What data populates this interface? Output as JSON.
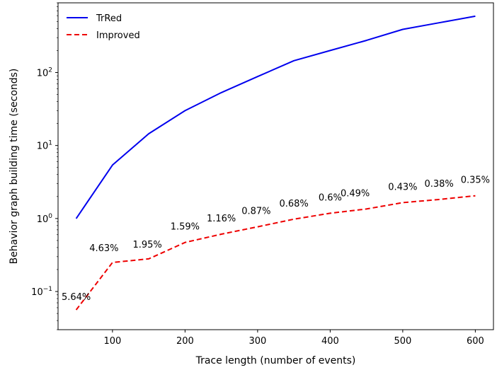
{
  "chart_data": {
    "type": "line",
    "xlabel": "Trace length (number of events)",
    "ylabel": "Behavior graph building time (seconds)",
    "yscale": "log",
    "xlim": [
      25,
      625
    ],
    "ylim": [
      0.03,
      900
    ],
    "x_ticks": [
      100,
      200,
      300,
      400,
      500,
      600
    ],
    "x_tick_labels": [
      "100",
      "200",
      "300",
      "400",
      "500",
      "600"
    ],
    "y_ticks": [
      0.1,
      1,
      10,
      100
    ],
    "y_tick_labels": [
      {
        "base": "10",
        "exp": "−1"
      },
      {
        "base": "10",
        "exp": "0"
      },
      {
        "base": "10",
        "exp": "1"
      },
      {
        "base": "10",
        "exp": "2"
      }
    ],
    "grid": false,
    "legend_position": "top-left",
    "x": [
      50,
      100,
      150,
      200,
      250,
      300,
      350,
      400,
      450,
      500,
      550,
      600
    ],
    "series": [
      {
        "name": "TrRed",
        "color": "#0000ee",
        "style": "solid",
        "values": [
          1.0,
          5.4,
          14.5,
          30,
          53,
          88,
          145,
          200,
          275,
          390,
          480,
          590
        ]
      },
      {
        "name": "Improved",
        "color": "#ee0000",
        "style": "dashed",
        "values": [
          0.056,
          0.25,
          0.28,
          0.47,
          0.61,
          0.77,
          0.98,
          1.18,
          1.35,
          1.65,
          1.82,
          2.05
        ],
        "data_labels": [
          "5.64%",
          "4.63%",
          "1.95%",
          "1.59%",
          "1.16%",
          "0.87%",
          "0.68%",
          "0.6%",
          "0.49%",
          "0.43%",
          "0.38%",
          "0.35%"
        ]
      }
    ]
  }
}
